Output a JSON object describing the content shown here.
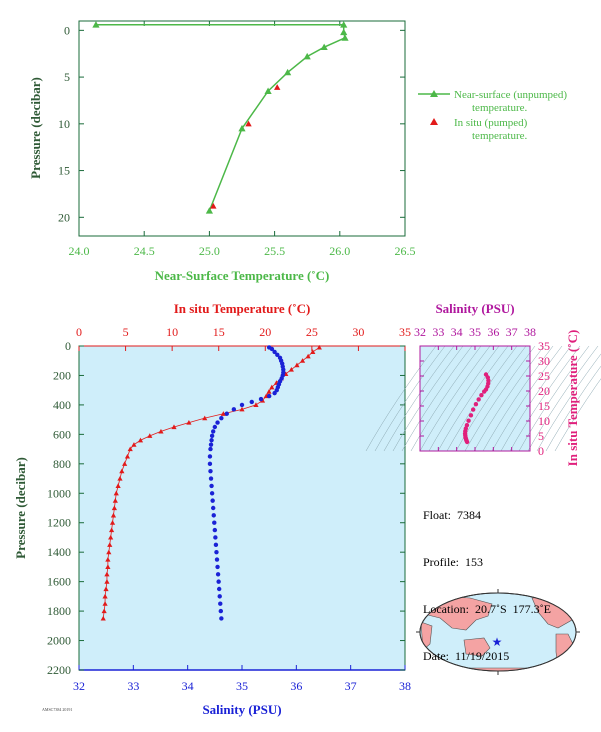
{
  "chart_data": [
    {
      "type": "line",
      "xlabel": "Near-Surface Temperature (˚C)",
      "ylabel": "Pressure (decibar)",
      "xlim": [
        24.0,
        26.5
      ],
      "ylim": [
        22,
        -1
      ],
      "x_ticks": [
        "24.0",
        "24.5",
        "25.0",
        "25.5",
        "26.0",
        "26.5"
      ],
      "y_ticks": [
        "0",
        "5",
        "10",
        "15",
        "20"
      ],
      "legend": {
        "placement": "right",
        "entries": [
          "Near-surface (unpumped) temperature.",
          "In situ (pumped) temperature."
        ]
      },
      "series": [
        {
          "name": "Near-surface (unpumped) temperature.",
          "color": "#4cb848",
          "marker": "triangle",
          "points": [
            [
              24.13,
              -0.6
            ],
            [
              26.03,
              -0.6
            ],
            [
              26.03,
              0.2
            ],
            [
              26.04,
              0.8
            ],
            [
              25.88,
              1.8
            ],
            [
              25.75,
              2.8
            ],
            [
              25.6,
              4.5
            ],
            [
              25.45,
              6.5
            ],
            [
              25.25,
              10.5
            ],
            [
              25.0,
              19.3
            ]
          ]
        },
        {
          "name": "In situ (pumped) temperature.",
          "color": "#e21a1a",
          "marker": "triangle",
          "points": [
            [
              25.03,
              18.8
            ],
            [
              25.3,
              10.0
            ],
            [
              25.52,
              6.1
            ]
          ]
        }
      ]
    },
    {
      "type": "scatter",
      "xlabel": "Salinity (PSU)",
      "x2label": "In situ Temperature (˚C)",
      "ylabel": "Pressure (decibar)",
      "xlim": [
        32,
        38
      ],
      "x2lim": [
        0,
        35
      ],
      "ylim": [
        2200,
        0
      ],
      "x_ticks": [
        "32",
        "33",
        "34",
        "35",
        "36",
        "37",
        "38"
      ],
      "x2_ticks": [
        "0",
        "5",
        "10",
        "15",
        "20",
        "25",
        "30",
        "35"
      ],
      "y_ticks": [
        "0",
        "200",
        "400",
        "600",
        "800",
        "1000",
        "1200",
        "1400",
        "1600",
        "1800",
        "2000",
        "2200"
      ],
      "series": [
        {
          "color": "#e21a1a",
          "marker": "triangle",
          "axis": "temperature",
          "points": [
            [
              25.8,
              10
            ],
            [
              25.1,
              40
            ],
            [
              24.6,
              70
            ],
            [
              24.0,
              100
            ],
            [
              23.4,
              130
            ],
            [
              22.8,
              160
            ],
            [
              22.2,
              190
            ],
            [
              21.7,
              220
            ],
            [
              21.2,
              250
            ],
            [
              20.7,
              280
            ],
            [
              20.4,
              310
            ],
            [
              20.1,
              340
            ],
            [
              19.7,
              370
            ],
            [
              19.0,
              400
            ],
            [
              17.5,
              430
            ],
            [
              15.5,
              460
            ],
            [
              13.5,
              490
            ],
            [
              11.8,
              520
            ],
            [
              10.2,
              550
            ],
            [
              8.8,
              580
            ],
            [
              7.6,
              610
            ],
            [
              6.6,
              640
            ],
            [
              5.9,
              670
            ],
            [
              5.5,
              700
            ],
            [
              5.2,
              750
            ],
            [
              4.9,
              800
            ],
            [
              4.6,
              850
            ],
            [
              4.4,
              900
            ],
            [
              4.2,
              950
            ],
            [
              4.0,
              1000
            ],
            [
              3.9,
              1050
            ],
            [
              3.8,
              1100
            ],
            [
              3.7,
              1150
            ],
            [
              3.6,
              1200
            ],
            [
              3.5,
              1250
            ],
            [
              3.4,
              1300
            ],
            [
              3.3,
              1350
            ],
            [
              3.2,
              1400
            ],
            [
              3.1,
              1450
            ],
            [
              3.1,
              1500
            ],
            [
              3.0,
              1550
            ],
            [
              3.0,
              1600
            ],
            [
              2.9,
              1650
            ],
            [
              2.8,
              1700
            ],
            [
              2.8,
              1750
            ],
            [
              2.7,
              1800
            ],
            [
              2.6,
              1850
            ]
          ]
        },
        {
          "color": "#1a22d6",
          "marker": "circle",
          "axis": "salinity",
          "points": [
            [
              35.5,
              10
            ],
            [
              35.55,
              20
            ],
            [
              35.6,
              40
            ],
            [
              35.65,
              60
            ],
            [
              35.7,
              80
            ],
            [
              35.72,
              100
            ],
            [
              35.74,
              120
            ],
            [
              35.75,
              140
            ],
            [
              35.76,
              160
            ],
            [
              35.76,
              180
            ],
            [
              35.75,
              200
            ],
            [
              35.73,
              220
            ],
            [
              35.7,
              240
            ],
            [
              35.68,
              260
            ],
            [
              35.66,
              280
            ],
            [
              35.64,
              300
            ],
            [
              35.6,
              320
            ],
            [
              35.5,
              340
            ],
            [
              35.35,
              360
            ],
            [
              35.18,
              380
            ],
            [
              35.0,
              400
            ],
            [
              34.85,
              430
            ],
            [
              34.72,
              460
            ],
            [
              34.62,
              490
            ],
            [
              34.55,
              520
            ],
            [
              34.5,
              550
            ],
            [
              34.47,
              580
            ],
            [
              34.45,
              610
            ],
            [
              34.44,
              640
            ],
            [
              34.43,
              670
            ],
            [
              34.42,
              700
            ],
            [
              34.41,
              750
            ],
            [
              34.41,
              800
            ],
            [
              34.42,
              850
            ],
            [
              34.43,
              900
            ],
            [
              34.44,
              950
            ],
            [
              34.45,
              1000
            ],
            [
              34.46,
              1050
            ],
            [
              34.47,
              1100
            ],
            [
              34.48,
              1150
            ],
            [
              34.49,
              1200
            ],
            [
              34.5,
              1250
            ],
            [
              34.51,
              1300
            ],
            [
              34.52,
              1350
            ],
            [
              34.53,
              1400
            ],
            [
              34.54,
              1450
            ],
            [
              34.55,
              1500
            ],
            [
              34.56,
              1550
            ],
            [
              34.57,
              1600
            ],
            [
              34.58,
              1650
            ],
            [
              34.59,
              1700
            ],
            [
              34.6,
              1750
            ],
            [
              34.61,
              1800
            ],
            [
              34.62,
              1850
            ]
          ]
        }
      ]
    },
    {
      "type": "scatter",
      "xlabel": "Salinity (PSU)",
      "ylabel": "In situ Temperature (˚C)",
      "xlim": [
        32,
        38
      ],
      "ylim": [
        0,
        35
      ],
      "x_ticks": [
        "32",
        "33",
        "34",
        "35",
        "36",
        "37",
        "38"
      ],
      "y_ticks": [
        "0",
        "5",
        "10",
        "15",
        "20",
        "25",
        "30",
        "35"
      ],
      "series": [
        {
          "color": "#e0207c",
          "marker": "circle",
          "points": [
            [
              35.6,
              25.5
            ],
            [
              35.7,
              24.5
            ],
            [
              35.73,
              23.5
            ],
            [
              35.72,
              22.5
            ],
            [
              35.68,
              21.5
            ],
            [
              35.6,
              20.5
            ],
            [
              35.5,
              19.8
            ],
            [
              35.35,
              18.6
            ],
            [
              35.2,
              17.2
            ],
            [
              35.05,
              15.6
            ],
            [
              34.9,
              13.8
            ],
            [
              34.78,
              11.9
            ],
            [
              34.65,
              10.1
            ],
            [
              34.56,
              8.6
            ],
            [
              34.5,
              7.5
            ],
            [
              34.47,
              6.6
            ],
            [
              34.46,
              5.8
            ],
            [
              34.47,
              5.2
            ],
            [
              34.48,
              4.6
            ],
            [
              34.5,
              4.2
            ],
            [
              34.52,
              3.8
            ],
            [
              34.54,
              3.4
            ],
            [
              34.57,
              3.0
            ]
          ]
        }
      ]
    }
  ],
  "float_info": {
    "float": "Float:  7384",
    "profile": "Profile:  153",
    "location": "Location:  20.7˚S  177.3˚E",
    "date": "Date:  11/19/2015"
  },
  "map": {
    "marker_longitude": "177.3˚E",
    "marker_latitude": "20.7˚S",
    "land_color": "#f4a3a3",
    "ocean_color": "#cfeefa"
  },
  "footer_text": "AMSC7384 20191"
}
